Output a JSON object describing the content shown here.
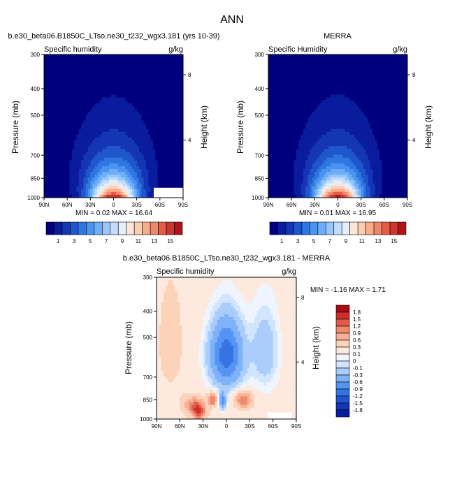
{
  "page_title": "ANN",
  "colors": {
    "abs": [
      "#00007f",
      "#0a1c9e",
      "#1436b5",
      "#1f56cc",
      "#2e76e0",
      "#4a93f0",
      "#6eaef8",
      "#98c8fb",
      "#c2ddfd",
      "#e3efff",
      "#fbe6d6",
      "#fbcdb2",
      "#f8ac8a",
      "#f0876a",
      "#e35d49",
      "#cf342d",
      "#b31318",
      "#8b0000"
    ],
    "diff": [
      "#00007f",
      "#0a1c9e",
      "#1436b5",
      "#1f56cc",
      "#3574e3",
      "#5694f3",
      "#7fb2f9",
      "#aacdfc",
      "#d2e5fe",
      "#eef5ff",
      "#fde9dd",
      "#fcd2b8",
      "#f8b094",
      "#f08a6d",
      "#e25d49",
      "#cc2f2c",
      "#a80e14",
      "#7a0000"
    ]
  },
  "chart_data": [
    {
      "type": "heatmap",
      "title": "b.e30_beta06.B1850C_LTso.ne30_t232_wgx3.181 (yrs 10-39)",
      "left_string": "Specific humidity",
      "right_string": "g/kg",
      "ylabel": "Pressure (mb)",
      "ylabel_right": "Height (km)",
      "x_ticks": [
        "90N",
        "60N",
        "30N",
        "0",
        "30S",
        "60S",
        "90S"
      ],
      "y_ticks": [
        "300",
        "400",
        "500",
        "700",
        "850",
        "1000"
      ],
      "y_ticks_right": [
        "8",
        "4"
      ],
      "xlim": [
        90,
        -90
      ],
      "ylim": [
        1000,
        300
      ],
      "stats": "MIN =  0.02  MAX =  16.64",
      "min": 0.02,
      "max": 16.64
    },
    {
      "type": "heatmap",
      "title": "MERRA",
      "left_string": "Specific Humidity",
      "right_string": "g/kg",
      "ylabel": "Pressure (mb)",
      "ylabel_right": "Height (km)",
      "x_ticks": [
        "90N",
        "60N",
        "30N",
        "0",
        "30S",
        "60S",
        "90S"
      ],
      "y_ticks": [
        "300",
        "400",
        "500",
        "700",
        "850",
        "1000"
      ],
      "y_ticks_right": [
        "8",
        "4"
      ],
      "xlim": [
        90,
        -90
      ],
      "ylim": [
        1000,
        300
      ],
      "stats": "MIN =  0.01  MAX =  16.95",
      "min": 0.01,
      "max": 16.95
    },
    {
      "type": "heatmap",
      "title": "b.e30_beta06.B1850C_LTso.ne30_t232_wgx3.181 - MERRA",
      "left_string": "Specific humidity",
      "right_string": "g/kg",
      "ylabel": "Pressure (mb)",
      "ylabel_right": "Height (km)",
      "x_ticks": [
        "90N",
        "60N",
        "30N",
        "0",
        "30S",
        "60S",
        "90S"
      ],
      "y_ticks": [
        "300",
        "400",
        "500",
        "700",
        "850",
        "1000"
      ],
      "y_ticks_right": [
        "8",
        "4"
      ],
      "xlim": [
        90,
        -90
      ],
      "ylim": [
        1000,
        300
      ],
      "stats": "MIN = -1.16  MAX =   1.71",
      "min": -1.16,
      "max": 1.71
    }
  ],
  "colorbar_abs": {
    "labels": [
      "1",
      "3",
      "5",
      "7",
      "9",
      "11",
      "13",
      "15"
    ]
  },
  "colorbar_diff": {
    "labels": [
      "1.8",
      "1.5",
      "1.2",
      "0.9",
      "0.6",
      "0.3",
      "0.1",
      "0",
      "-0.1",
      "-0.3",
      "-0.6",
      "-0.9",
      "-1.2",
      "-1.5",
      "-1.8"
    ]
  }
}
